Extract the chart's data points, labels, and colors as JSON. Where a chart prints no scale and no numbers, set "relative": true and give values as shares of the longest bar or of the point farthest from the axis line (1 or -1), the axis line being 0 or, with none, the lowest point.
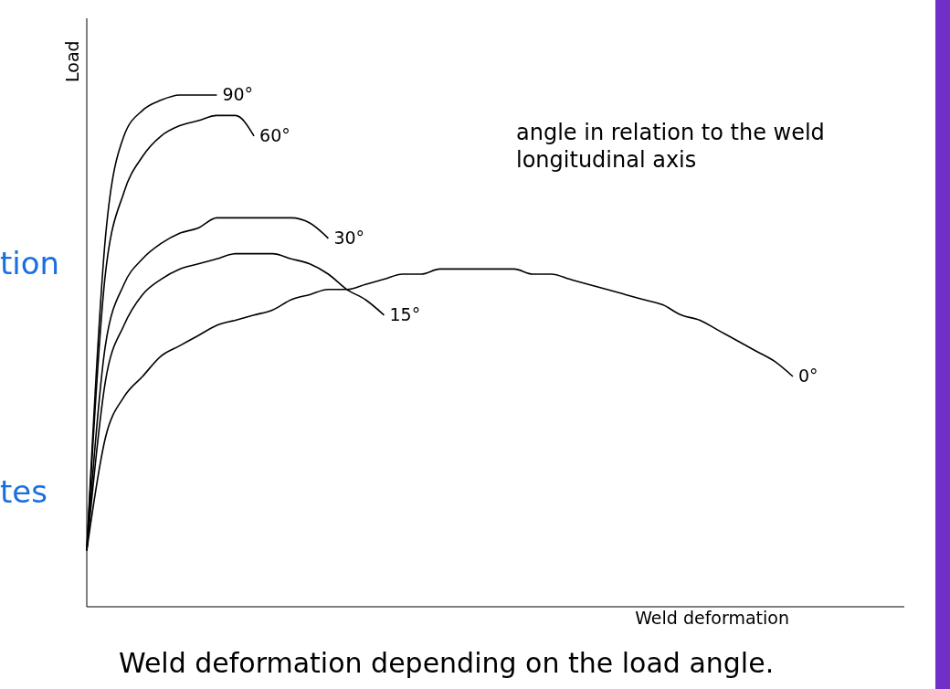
{
  "chart_data": {
    "type": "line",
    "relative": true,
    "xlabel": "Weld deformation",
    "ylabel": "Load",
    "annotations": [
      "angle in relation to the weld longitudinal axis",
      "Weld deformation depending on the load angle.",
      "tion",
      "tes"
    ],
    "categories": [
      null,
      null,
      null,
      null,
      null,
      null,
      null,
      null,
      null,
      null,
      null,
      null,
      null,
      null,
      null,
      null,
      null,
      null,
      null,
      null,
      null,
      null,
      null,
      null,
      null,
      null,
      null,
      null,
      null,
      null,
      null,
      null,
      null,
      null,
      null,
      null,
      null,
      null,
      null,
      null,
      null,
      null,
      null,
      null,
      null
    ],
    "legend": false,
    "grid": false,
    "marker": "none",
    "line_style": "solid",
    "series": [
      {
        "name": "90°",
        "color": "#000000",
        "values": [
          0.11,
          0.72,
          0.92,
          0.97,
          0.99,
          1.0,
          1.0,
          1.0,
          null,
          null,
          null,
          null,
          null,
          null,
          null,
          null,
          null,
          null,
          null,
          null,
          null,
          null,
          null,
          null,
          null,
          null,
          null,
          null,
          null,
          null,
          null,
          null,
          null,
          null,
          null,
          null,
          null,
          null,
          null,
          null,
          null,
          null,
          null,
          null,
          null
        ]
      },
      {
        "name": "60°",
        "color": "#000000",
        "values": [
          0.11,
          0.65,
          0.81,
          0.88,
          0.92,
          0.94,
          0.95,
          0.96,
          0.96,
          0.92,
          null,
          null,
          null,
          null,
          null,
          null,
          null,
          null,
          null,
          null,
          null,
          null,
          null,
          null,
          null,
          null,
          null,
          null,
          null,
          null,
          null,
          null,
          null,
          null,
          null,
          null,
          null,
          null,
          null,
          null,
          null,
          null,
          null,
          null,
          null
        ]
      },
      {
        "name": "30°",
        "color": "#000000",
        "values": [
          0.11,
          0.51,
          0.63,
          0.68,
          0.71,
          0.73,
          0.74,
          0.76,
          0.76,
          0.76,
          0.76,
          0.76,
          0.75,
          0.72,
          null,
          null,
          null,
          null,
          null,
          null,
          null,
          null,
          null,
          null,
          null,
          null,
          null,
          null,
          null,
          null,
          null,
          null,
          null,
          null,
          null,
          null,
          null,
          null,
          null,
          null,
          null,
          null,
          null,
          null,
          null
        ]
      },
      {
        "name": "15°",
        "color": "#000000",
        "values": [
          0.11,
          0.44,
          0.55,
          0.61,
          0.64,
          0.66,
          0.67,
          0.68,
          0.69,
          0.69,
          0.69,
          0.68,
          0.67,
          0.65,
          0.62,
          0.6,
          0.57,
          null,
          null,
          null,
          null,
          null,
          null,
          null,
          null,
          null,
          null,
          null,
          null,
          null,
          null,
          null,
          null,
          null,
          null,
          null,
          null,
          null,
          null,
          null,
          null,
          null,
          null,
          null,
          null
        ]
      },
      {
        "name": "0°",
        "color": "#000000",
        "values": [
          0.11,
          0.33,
          0.41,
          0.45,
          0.49,
          0.51,
          0.53,
          0.55,
          0.56,
          0.57,
          0.58,
          0.6,
          0.61,
          0.62,
          0.62,
          0.63,
          0.64,
          0.65,
          0.65,
          0.66,
          0.66,
          0.66,
          0.66,
          0.66,
          0.65,
          0.65,
          0.64,
          0.63,
          0.62,
          0.61,
          0.6,
          0.59,
          0.57,
          0.56,
          0.54,
          0.52,
          0.5,
          0.48,
          0.45,
          null,
          null,
          null,
          null,
          null,
          null
        ]
      }
    ]
  }
}
